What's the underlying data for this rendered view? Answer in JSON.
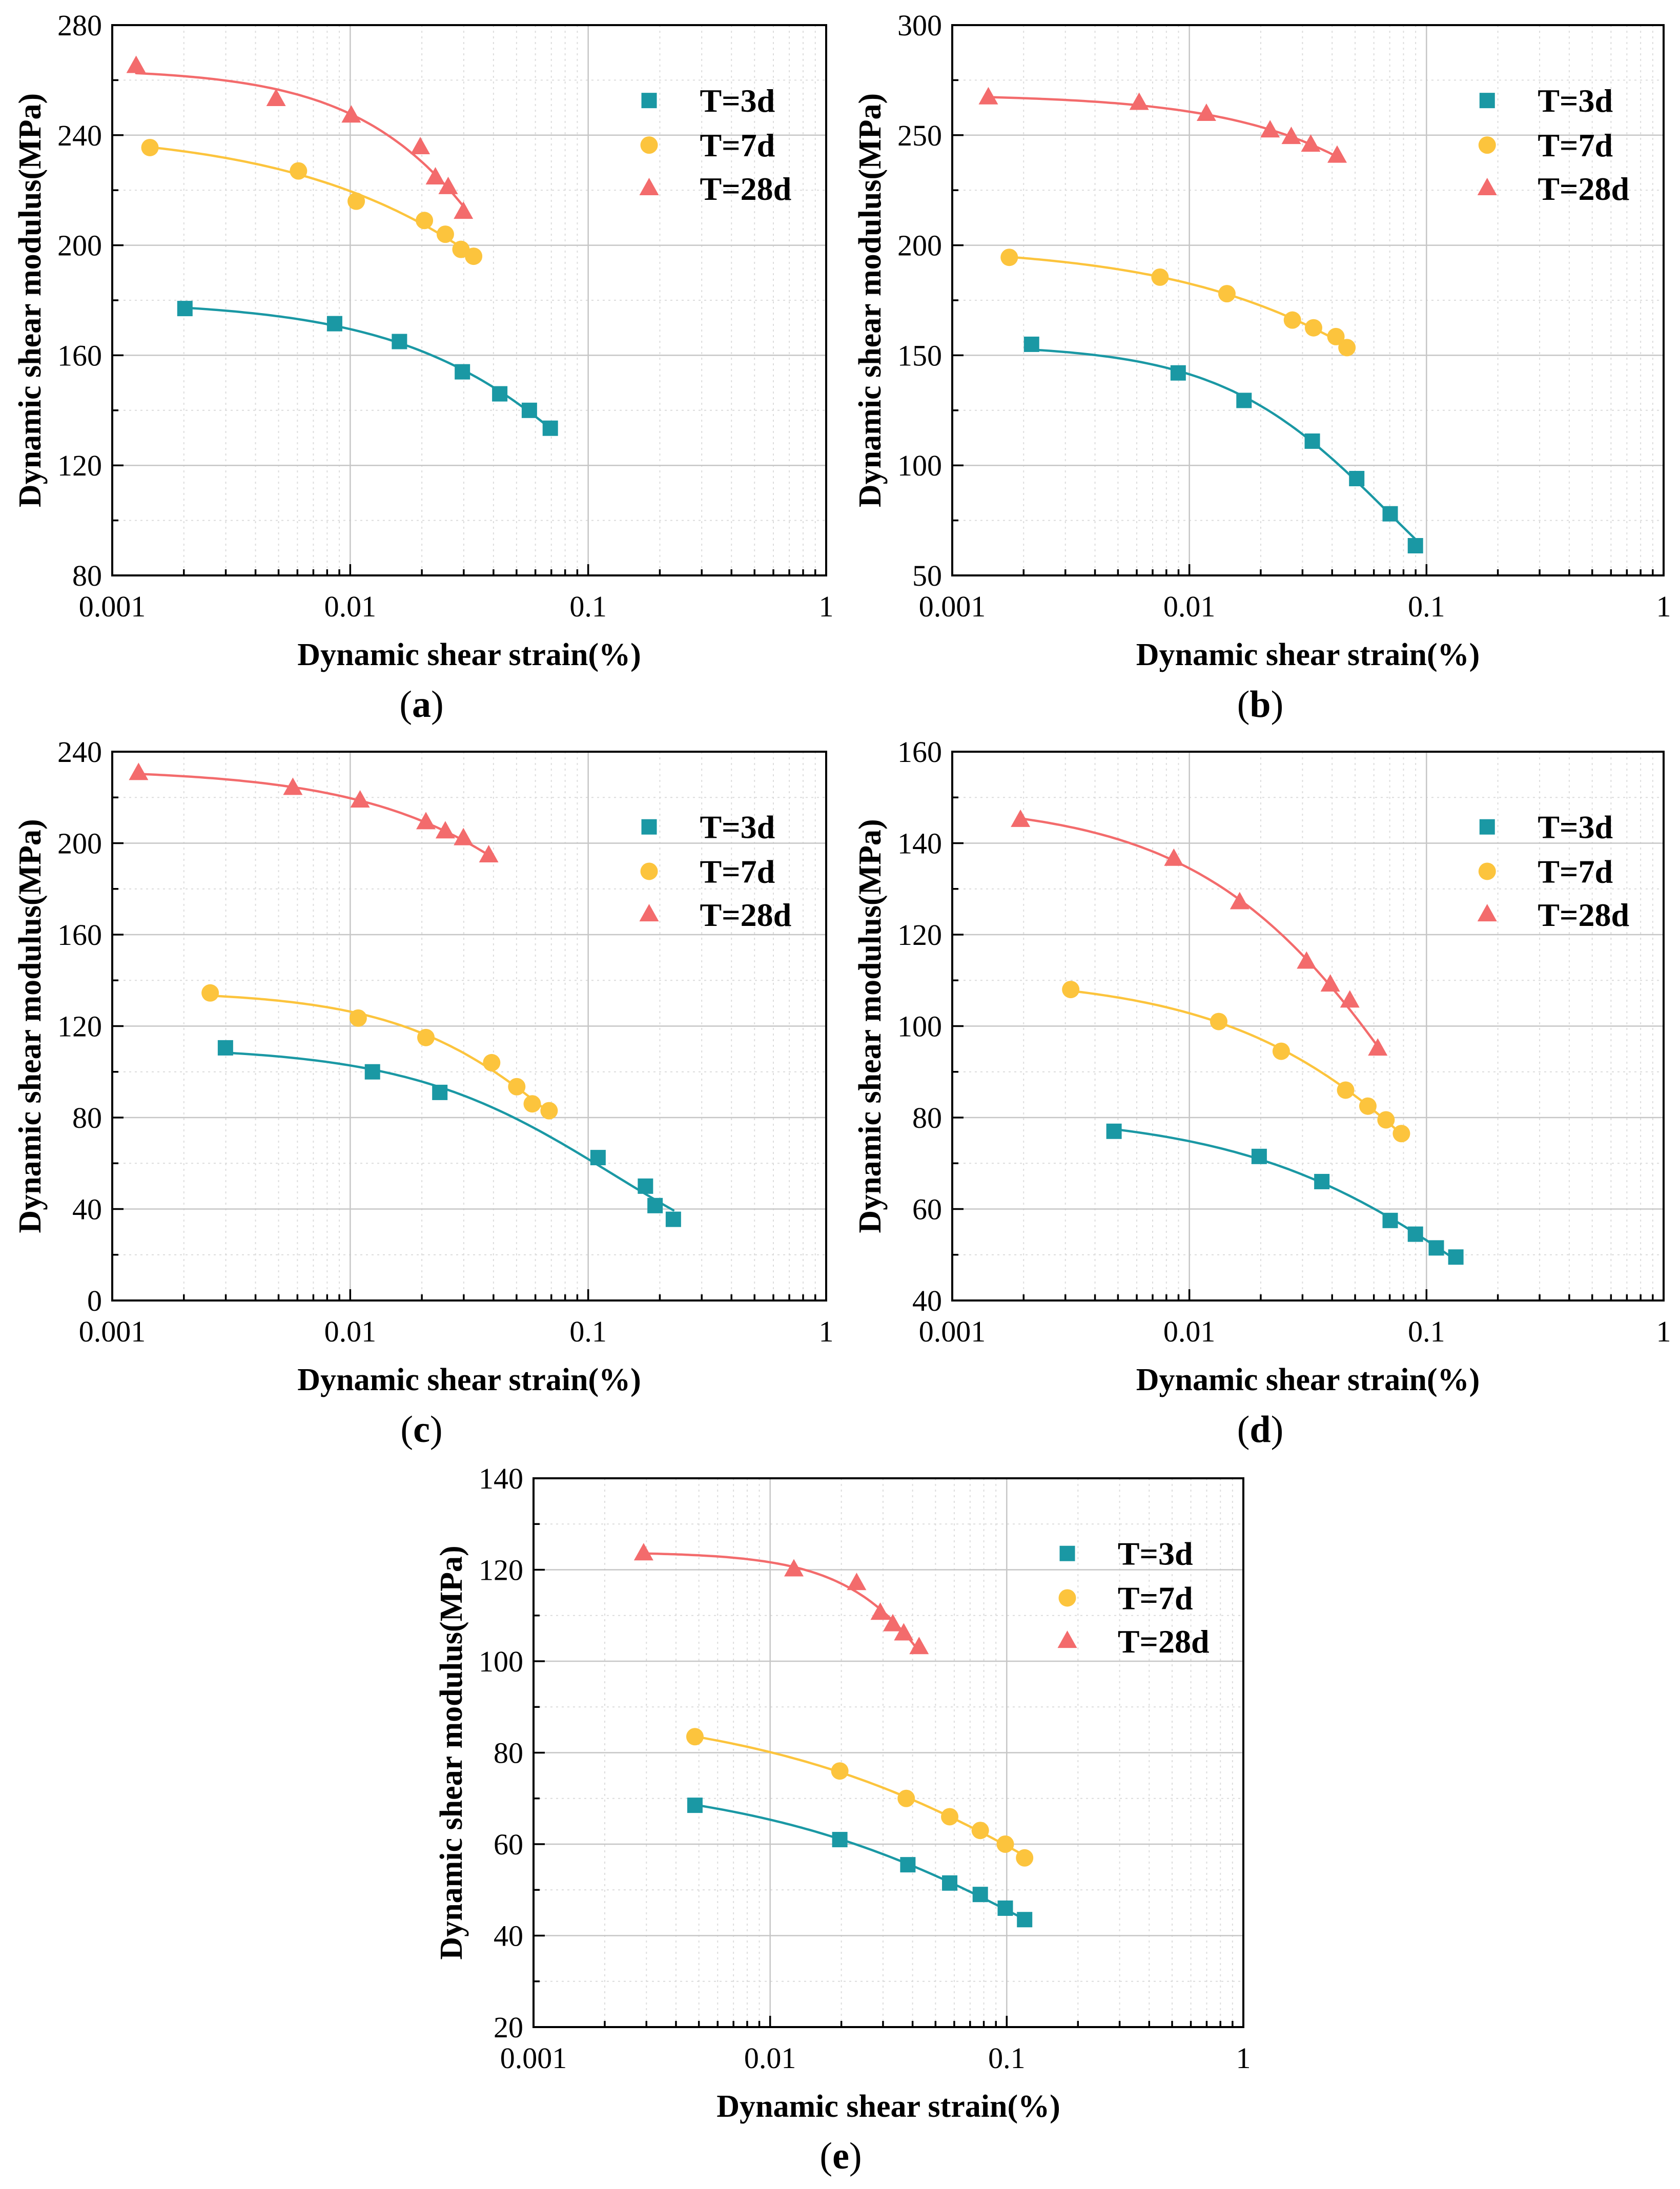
{
  "chart_data": [
    {
      "panel": "(a)",
      "type": "scatter",
      "xlabel": "Dynamic shear strain(%)",
      "ylabel": "Dynamic shear modulus(MPa)",
      "xscale": "log",
      "xlim": [
        0.001,
        1
      ],
      "xticks": [
        0.001,
        0.01,
        0.1,
        1
      ],
      "xtick_labels": [
        "0.001",
        "0.01",
        "0.1",
        "1"
      ],
      "ylim": [
        80,
        280
      ],
      "yticks": [
        80,
        120,
        160,
        200,
        240,
        280
      ],
      "grid": true,
      "legend_position": "upper-right",
      "series": [
        {
          "name": "T=3d",
          "marker": "square",
          "color": "#1a98a4",
          "x": [
            0.00202,
            0.0086,
            0.0161,
            0.0296,
            0.0425,
            0.0566,
            0.0693
          ],
          "y": [
            177,
            171.5,
            165,
            154,
            146,
            140,
            133.5
          ]
        },
        {
          "name": "T=7d",
          "marker": "circle",
          "color": "#fcc43d",
          "x": [
            0.00144,
            0.00606,
            0.0106,
            0.0205,
            0.0251,
            0.0292,
            0.033
          ],
          "y": [
            235.5,
            227,
            216,
            209,
            204,
            198.5,
            196
          ]
        },
        {
          "name": "T=28d",
          "marker": "triangle",
          "color": "#f36b6c",
          "x": [
            0.00126,
            0.00488,
            0.0101,
            0.0197,
            0.0228,
            0.0258,
            0.0299
          ],
          "y": [
            265,
            253,
            247,
            235.5,
            224.5,
            221,
            212
          ]
        }
      ]
    },
    {
      "panel": "(b)",
      "type": "scatter",
      "xlabel": "Dynamic shear strain(%)",
      "ylabel": "Dynamic shear modulus(MPa)",
      "xscale": "log",
      "xlim": [
        0.001,
        1
      ],
      "xticks": [
        0.001,
        0.01,
        0.1,
        1
      ],
      "xtick_labels": [
        "0.001",
        "0.01",
        "0.1",
        "1"
      ],
      "ylim": [
        50,
        300
      ],
      "yticks": [
        50,
        100,
        150,
        200,
        250,
        300
      ],
      "grid": true,
      "legend_position": "upper-right",
      "series": [
        {
          "name": "T=3d",
          "marker": "square",
          "color": "#1a98a4",
          "x": [
            0.00216,
            0.00897,
            0.017,
            0.033,
            0.0508,
            0.0703,
            0.0898
          ],
          "y": [
            155,
            142,
            129.5,
            111,
            94,
            78,
            63.5
          ]
        },
        {
          "name": "T=7d",
          "marker": "circle",
          "color": "#fcc43d",
          "x": [
            0.00174,
            0.00752,
            0.0144,
            0.0272,
            0.0334,
            0.0415,
            0.0462
          ],
          "y": [
            194.5,
            185.5,
            178,
            166,
            162.5,
            158.5,
            153.5
          ]
        },
        {
          "name": "T=28d",
          "marker": "triangle",
          "color": "#f36b6c",
          "x": [
            0.00142,
            0.00614,
            0.0118,
            0.0219,
            0.0269,
            0.0325,
            0.042
          ],
          "y": [
            267,
            264.5,
            259.5,
            252,
            249,
            245.5,
            240.5
          ]
        }
      ]
    },
    {
      "panel": "(c)",
      "type": "scatter",
      "xlabel": "Dynamic shear strain(%)",
      "ylabel": "Dynamic shear modulus(MPa)",
      "xscale": "log",
      "xlim": [
        0.001,
        1
      ],
      "xticks": [
        0.001,
        0.01,
        0.1,
        1
      ],
      "xtick_labels": [
        "0.001",
        "0.01",
        "0.1",
        "1"
      ],
      "ylim": [
        0,
        240
      ],
      "yticks": [
        0,
        40,
        80,
        120,
        160,
        200,
        240
      ],
      "grid": true,
      "legend_position": "upper-right",
      "series": [
        {
          "name": "T=3d",
          "marker": "square",
          "color": "#1a98a4",
          "x": [
            0.00299,
            0.0124,
            0.0238,
            0.11,
            0.174,
            0.191,
            0.228
          ],
          "y": [
            110.5,
            100,
            91,
            62.5,
            50,
            41.5,
            35.5
          ]
        },
        {
          "name": "T=7d",
          "marker": "circle",
          "color": "#fcc43d",
          "x": [
            0.00258,
            0.0108,
            0.0208,
            0.0393,
            0.0501,
            0.0582,
            0.0685
          ],
          "y": [
            134.5,
            123.5,
            115,
            104,
            93.5,
            86,
            83
          ]
        },
        {
          "name": "T=28d",
          "marker": "triangle",
          "color": "#f36b6c",
          "x": [
            0.00129,
            0.00574,
            0.011,
            0.0208,
            0.0251,
            0.0299,
            0.0382
          ],
          "y": [
            230.5,
            224,
            218.5,
            209,
            205,
            202,
            194.5
          ]
        }
      ]
    },
    {
      "panel": "(d)",
      "type": "scatter",
      "xlabel": "Dynamic shear strain(%)",
      "ylabel": "Dynamic shear modulus(MPa)",
      "xscale": "log",
      "xlim": [
        0.001,
        1
      ],
      "xticks": [
        0.001,
        0.01,
        0.1,
        1
      ],
      "xtick_labels": [
        "0.001",
        "0.01",
        "0.1",
        "1"
      ],
      "ylim": [
        40,
        160
      ],
      "yticks": [
        40,
        60,
        80,
        100,
        120,
        140,
        160
      ],
      "grid": true,
      "legend_position": "upper-right",
      "series": [
        {
          "name": "T=3d",
          "marker": "square",
          "color": "#1a98a4",
          "x": [
            0.00481,
            0.0197,
            0.0362,
            0.0703,
            0.0898,
            0.11,
            0.133
          ],
          "y": [
            77,
            71.5,
            66,
            57.5,
            54.5,
            51.5,
            49.5
          ]
        },
        {
          "name": "T=7d",
          "marker": "circle",
          "color": "#fcc43d",
          "x": [
            0.00316,
            0.0133,
            0.0244,
            0.0456,
            0.0566,
            0.0675,
            0.0784
          ],
          "y": [
            108,
            101,
            94.5,
            86,
            82.5,
            79.5,
            76.5
          ]
        },
        {
          "name": "T=28d",
          "marker": "triangle",
          "color": "#f36b6c",
          "x": [
            0.00194,
            0.0086,
            0.0163,
            0.0312,
            0.0393,
            0.0475,
            0.0623
          ],
          "y": [
            145,
            136.5,
            127,
            114,
            109,
            105.5,
            95
          ]
        }
      ]
    },
    {
      "panel": "(e)",
      "type": "scatter",
      "xlabel": "Dynamic shear strain(%)",
      "ylabel": "Dynamic shear modulus(MPa)",
      "xscale": "log",
      "xlim": [
        0.001,
        1
      ],
      "xticks": [
        0.001,
        0.01,
        0.1,
        1
      ],
      "xtick_labels": [
        "0.001",
        "0.01",
        "0.1",
        "1"
      ],
      "ylim": [
        20,
        140
      ],
      "yticks": [
        20,
        40,
        60,
        80,
        100,
        120,
        140
      ],
      "grid": true,
      "legend_position": "upper-right",
      "series": [
        {
          "name": "T=3d",
          "marker": "square",
          "color": "#1a98a4",
          "x": [
            0.00481,
            0.0197,
            0.0382,
            0.0574,
            0.0773,
            0.0986,
            0.119
          ],
          "y": [
            68.5,
            61,
            55.5,
            51.5,
            49,
            46,
            43.5
          ]
        },
        {
          "name": "T=7d",
          "marker": "circle",
          "color": "#fcc43d",
          "x": [
            0.00481,
            0.0197,
            0.0376,
            0.0574,
            0.0773,
            0.0986,
            0.119
          ],
          "y": [
            83.5,
            76,
            70,
            66,
            63,
            60,
            57
          ]
        },
        {
          "name": "T=28d",
          "marker": "triangle",
          "color": "#f36b6c",
          "x": [
            0.00292,
            0.0126,
            0.0232,
            0.0292,
            0.033,
            0.0367,
            0.0426
          ],
          "y": [
            123.5,
            120,
            117,
            110.5,
            108,
            106,
            103
          ]
        }
      ]
    }
  ]
}
